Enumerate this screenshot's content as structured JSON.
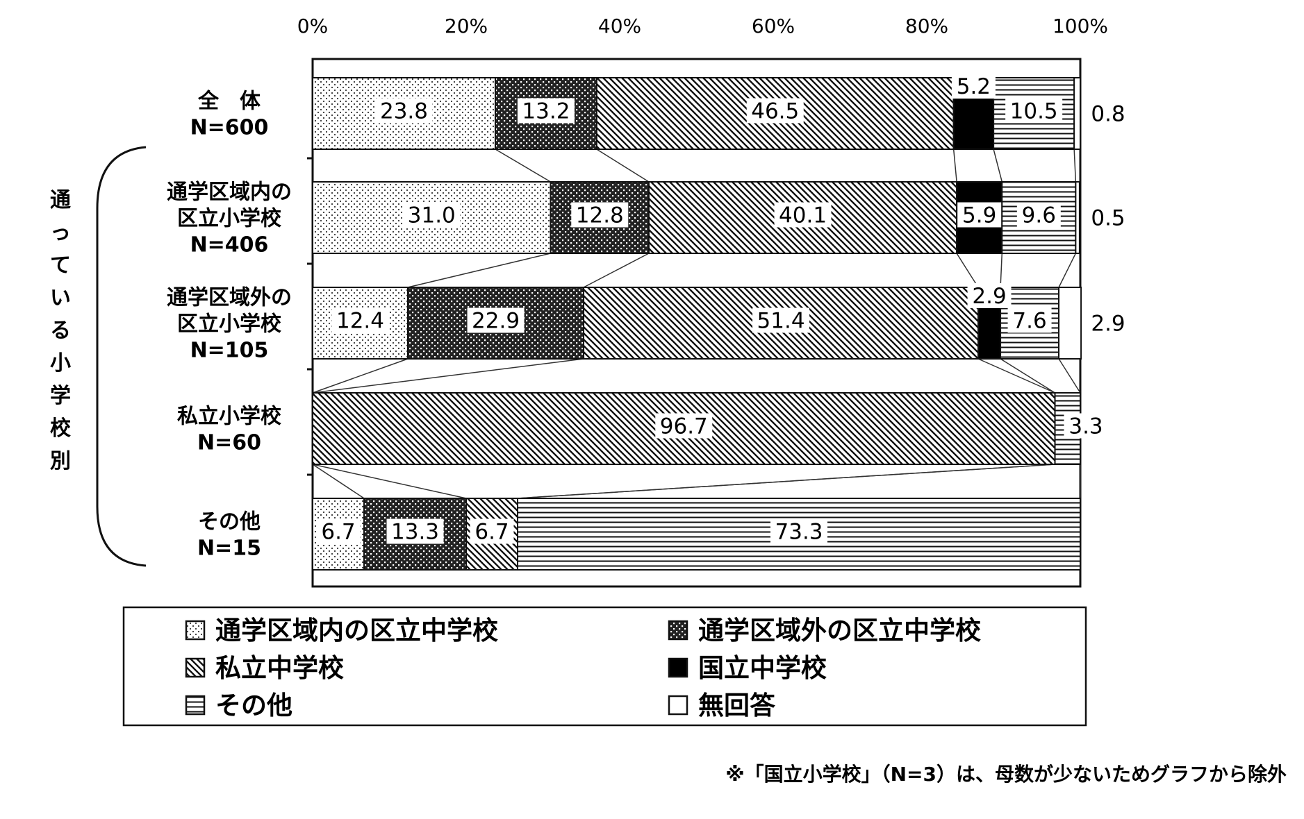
{
  "chart_data": {
    "type": "bar",
    "orientation": "horizontal",
    "stacked": true,
    "normalized": true,
    "x_ticks": [
      "0%",
      "20%",
      "40%",
      "60%",
      "80%",
      "100%"
    ],
    "xlim": [
      0,
      100
    ],
    "group_label": "通っている小学校別",
    "categories": [
      {
        "label_lines": [
          "全　体",
          "N=600"
        ]
      },
      {
        "label_lines": [
          "通学区域内の",
          "区立小学校",
          "N=406"
        ]
      },
      {
        "label_lines": [
          "通学区域外の",
          "区立小学校",
          "N=105"
        ]
      },
      {
        "label_lines": [
          "私立小学校",
          "N=60"
        ]
      },
      {
        "label_lines": [
          "その他",
          "N=15"
        ]
      }
    ],
    "series": [
      {
        "name": "通学区域内の区立中学校",
        "pattern": "dots",
        "values": [
          23.8,
          31.0,
          12.4,
          0,
          6.7
        ],
        "labels": [
          "23.8",
          "31.0",
          "12.4",
          "",
          "6.7"
        ]
      },
      {
        "name": "通学区域外の区立中学校",
        "pattern": "checker",
        "values": [
          13.2,
          12.8,
          22.9,
          0,
          13.3
        ],
        "labels": [
          "13.2",
          "12.8",
          "22.9",
          "",
          "13.3"
        ]
      },
      {
        "name": "私立中学校",
        "pattern": "diagonal",
        "values": [
          46.5,
          40.1,
          51.4,
          96.7,
          6.7
        ],
        "labels": [
          "46.5",
          "40.1",
          "51.4",
          "96.7",
          "6.7"
        ]
      },
      {
        "name": "国立中学校",
        "pattern": "solid",
        "values": [
          5.2,
          5.9,
          2.9,
          0,
          0
        ],
        "labels": [
          "5.2",
          "5.9",
          "2.9",
          "",
          ""
        ]
      },
      {
        "name": "その他",
        "pattern": "horizontal",
        "values": [
          10.5,
          9.6,
          7.6,
          3.3,
          73.3
        ],
        "labels": [
          "10.5",
          "9.6",
          "7.6",
          "3.3",
          "73.3"
        ]
      },
      {
        "name": "無回答",
        "pattern": "white",
        "values": [
          0.8,
          0.5,
          2.9,
          0,
          0
        ],
        "labels": [
          "0.8",
          "0.5",
          "2.9",
          "",
          ""
        ]
      }
    ],
    "legend_placement": "bottom",
    "note": "※「国立小学校」（N=3）は、母数が少ないためグラフから除外"
  }
}
